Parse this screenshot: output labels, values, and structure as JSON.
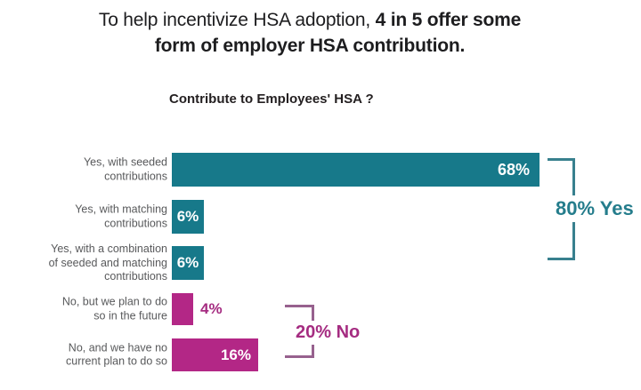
{
  "headline": {
    "line1_regular": "To help incentivize HSA adoption, ",
    "line1_bold": "4 in 5 offer some",
    "line2_bold": "form of employer HSA contribution."
  },
  "chart_data": {
    "type": "bar",
    "orientation": "horizontal",
    "title": "Contribute to Employees' HSA ?",
    "unit": "percent",
    "xlim": [
      0,
      100
    ],
    "grid": false,
    "legend": "none",
    "categories": [
      "Yes, with seeded contributions",
      "Yes, with matching contributions",
      "Yes, with a combination of seeded and matching contributions",
      "No, but we plan to do so in the future",
      "No, and we have no current plan to do so"
    ],
    "values": [
      68,
      6,
      6,
      4,
      16
    ],
    "value_labels": [
      "68%",
      "6%",
      "6%",
      "4%",
      "16%"
    ],
    "groups": [
      "yes",
      "yes",
      "yes",
      "no",
      "no"
    ],
    "annotations": [
      {
        "text": "80% Yes",
        "group": "yes",
        "total": 80
      },
      {
        "text": "20% No",
        "group": "no",
        "total": 20
      }
    ],
    "colors": {
      "yes": "#17798A",
      "no": "#B32786",
      "yes_text": "#257D8C",
      "no_text": "#A52C81",
      "yes_bracket": "#38808E",
      "no_bracket": "#97618E",
      "headline_text": "#1D1D1F",
      "category_label": "#58595B",
      "bar_value_inside": "#FFFFFF"
    }
  },
  "rows": [
    {
      "label_lines": [
        "Yes, with seeded",
        "contributions"
      ],
      "value": 68,
      "display": "68%",
      "group": "yes",
      "value_pos": "inside-right",
      "pad": 11,
      "font": 18
    },
    {
      "label_lines": [
        "Yes, with matching",
        "contributions"
      ],
      "value": 6,
      "display": "6%",
      "group": "yes",
      "value_pos": "inside-center",
      "pad": 0,
      "font": 17
    },
    {
      "label_lines": [
        "Yes, with a combination",
        "of seeded and matching",
        "contributions"
      ],
      "value": 6,
      "display": "6%",
      "group": "yes",
      "value_pos": "inside-center",
      "pad": 0,
      "font": 17
    },
    {
      "label_lines": [
        "No, but we plan to do",
        "so in the future"
      ],
      "value": 4,
      "display": "4%",
      "group": "no",
      "value_pos": "outside-right",
      "pad": 8,
      "font": 17
    },
    {
      "label_lines": [
        "No, and we have no",
        "current plan to do so"
      ],
      "value": 16,
      "display": "16%",
      "group": "no",
      "value_pos": "inside-right",
      "pad": 8,
      "font": 17
    }
  ]
}
